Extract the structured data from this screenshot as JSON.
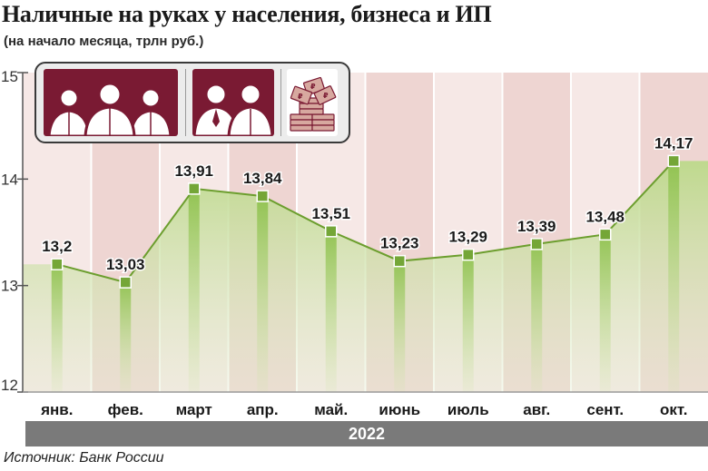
{
  "title": "Наличные на руках у населения, бизнеса и ИП",
  "subtitle": "(на начало месяца, трлн руб.)",
  "year": "2022",
  "source": "Источник: Банк России",
  "icons": {
    "group1": "people-group-icon",
    "group2": "business-people-icon",
    "group3": "ruble-banknotes-icon"
  },
  "colors": {
    "title": "#1a1a1a",
    "band_light": "#f6e8e6",
    "band_dark": "#eed5d2",
    "area_fill": "#cfe3a8",
    "line": "#6c9e2e",
    "marker": "#74a637",
    "icon_tile": "#7a1a33",
    "year_bar": "#7a7a7a"
  },
  "chart_data": {
    "type": "area",
    "categories": [
      "янв.",
      "фев.",
      "март",
      "апр.",
      "май.",
      "июнь",
      "июль",
      "авг.",
      "сент.",
      "окт."
    ],
    "values": [
      13.2,
      13.03,
      13.91,
      13.84,
      13.51,
      13.23,
      13.29,
      13.39,
      13.48,
      14.17
    ],
    "value_labels": [
      "13,2",
      "13,03",
      "13,91",
      "13,84",
      "13,51",
      "13,23",
      "13,29",
      "13,39",
      "13,48",
      "14,17"
    ],
    "yticks": [
      "12",
      "13",
      "14",
      "15"
    ],
    "ylim": [
      12,
      15
    ],
    "grid": false
  }
}
